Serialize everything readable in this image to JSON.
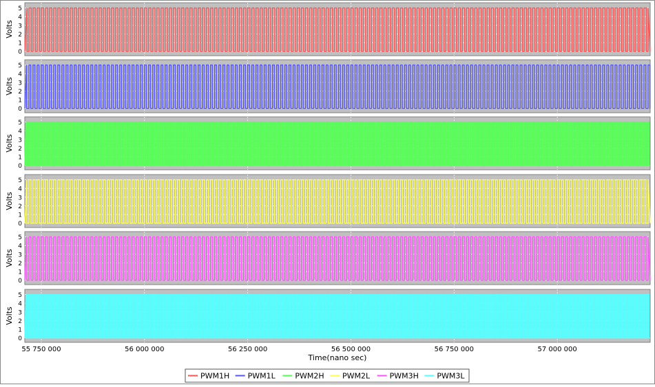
{
  "chart_data": {
    "type": "line",
    "title": "",
    "xlabel": "Time(nano sec)",
    "ylabel": "Volts",
    "xlim": [
      55710000,
      57225000
    ],
    "ylim": [
      -0.5,
      5.6
    ],
    "yticks": [
      "0",
      "1",
      "2",
      "3",
      "4",
      "5"
    ],
    "xticks": [
      {
        "value": 55750000,
        "label": "55 750 000"
      },
      {
        "value": 56000000,
        "label": "56 000 000"
      },
      {
        "value": 56250000,
        "label": "56 250 000"
      },
      {
        "value": 56500000,
        "label": "56 500 000"
      },
      {
        "value": 56750000,
        "label": "56 750 000"
      },
      {
        "value": 57000000,
        "label": "57 000 000"
      }
    ],
    "grid": true,
    "legend_position": "bottom",
    "series": [
      {
        "name": "PWM1H",
        "color": "#ff5555",
        "low": 0,
        "high": 5,
        "period_ns": 10000,
        "duty": 0.55
      },
      {
        "name": "PWM1L",
        "color": "#5555ff",
        "low": 0,
        "high": 5,
        "period_ns": 10000,
        "duty": 0.45
      },
      {
        "name": "PWM2H",
        "color": "#55ff55",
        "low": 0,
        "high": 5,
        "period_ns": 5000,
        "duty": 0.5
      },
      {
        "name": "PWM2L",
        "color": "#ffff55",
        "low": 0,
        "high": 5,
        "period_ns": 10000,
        "duty": 0.5
      },
      {
        "name": "PWM3H",
        "color": "#ff55ff",
        "low": 0,
        "high": 5,
        "period_ns": 10000,
        "duty": 0.5
      },
      {
        "name": "PWM3L",
        "color": "#55ffff",
        "low": 0,
        "high": 5,
        "period_ns": 5000,
        "duty": 0.5
      }
    ]
  }
}
